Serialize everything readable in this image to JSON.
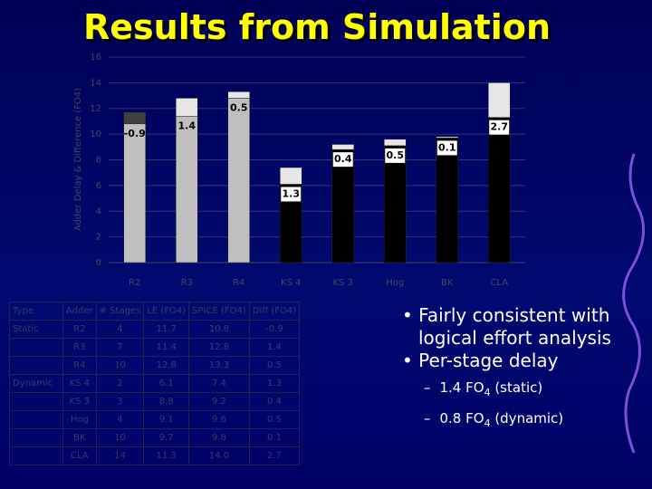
{
  "title": "Results from Simulation",
  "chart_data": {
    "type": "stacked_bar",
    "ylabel": "Adder Delay & Difference (FO4)",
    "categories": [
      "R2",
      "R3",
      "R4",
      "KS 4",
      "KS 3",
      "Hog",
      "BK",
      "CLA"
    ],
    "series": [
      {
        "colors": [
          "#bfbfbf",
          "#bfbfbf",
          "#bfbfbf",
          "#000000",
          "#000000",
          "#000000",
          "#000000",
          "#000000"
        ],
        "values": [
          11.7,
          11.4,
          12.8,
          6.1,
          8.8,
          9.1,
          9.7,
          11.3
        ]
      },
      {
        "color": "#e6e6e6",
        "negative_color": "#404040",
        "values": [
          -0.9,
          1.4,
          0.5,
          1.3,
          0.4,
          0.5,
          0.1,
          2.7
        ]
      }
    ],
    "ylim": [
      0,
      16
    ],
    "yticks": [
      0,
      2,
      4,
      6,
      8,
      10,
      12,
      14,
      16
    ],
    "grid": true
  },
  "table": {
    "header": [
      "Type",
      "Adder",
      "# Stages",
      "LE (FO4)",
      "SPICE (FO4)",
      "Diff (FO4)"
    ],
    "rows": [
      [
        "Static",
        "R2",
        "4",
        "11.7",
        "10.8",
        "-0.9"
      ],
      [
        "",
        "R3",
        "7",
        "11.4",
        "12.8",
        "1.4"
      ],
      [
        "",
        "R4",
        "10",
        "12.8",
        "13.3",
        "0.5"
      ],
      [
        "Dynamic",
        "KS 4",
        "2",
        "6.1",
        "7.4",
        "1.3"
      ],
      [
        "",
        "KS 3",
        "3",
        "8.8",
        "9.2",
        "0.4"
      ],
      [
        "",
        "Hog",
        "4",
        "9.1",
        "9.6",
        "0.5"
      ],
      [
        "",
        "BK",
        "10",
        "9.7",
        "9.8",
        "0.1"
      ],
      [
        "",
        "CLA",
        "14",
        "11.3",
        "14.0",
        "2.7"
      ]
    ]
  },
  "bullets": [
    "Fairly consistent with logical effort analysis",
    "Per-stage delay"
  ],
  "sub_bullets": [
    {
      "dash": "–",
      "before": "1.4 FO",
      "sub": "4",
      "after": " (static)"
    },
    {
      "dash": "–",
      "before": "0.8 FO",
      "sub": "4",
      "after": " (dynamic)"
    }
  ]
}
